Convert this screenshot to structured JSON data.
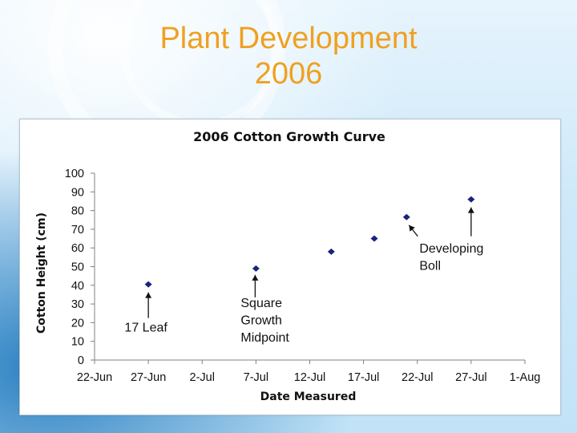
{
  "slide": {
    "title_line1": "Plant Development",
    "title_line2": "2006"
  },
  "colors": {
    "title": "#f0a020",
    "marker": "#1a237e",
    "axis": "#808080"
  },
  "chart_data": {
    "type": "scatter",
    "title": "2006 Cotton Growth Curve",
    "xlabel": "Date Measured",
    "ylabel": "Cotton Height (cm)",
    "xlim": [
      "2006-06-22",
      "2006-08-01"
    ],
    "ylim": [
      0,
      100
    ],
    "yticks": [
      0,
      10,
      20,
      30,
      40,
      50,
      60,
      70,
      80,
      90,
      100
    ],
    "xticks": [
      "22-Jun",
      "27-Jun",
      "2-Jul",
      "7-Jul",
      "12-Jul",
      "17-Jul",
      "22-Jul",
      "27-Jul",
      "1-Aug"
    ],
    "grid": false,
    "legend": "none",
    "series": [
      {
        "name": "Cotton Height",
        "points": [
          {
            "x": "2006-06-27",
            "y": 40.5
          },
          {
            "x": "2006-07-07",
            "y": 49
          },
          {
            "x": "2006-07-14",
            "y": 58
          },
          {
            "x": "2006-07-18",
            "y": 65
          },
          {
            "x": "2006-07-21",
            "y": 76.5
          },
          {
            "x": "2006-07-27",
            "y": 86
          }
        ]
      }
    ],
    "annotations": [
      {
        "lines": [
          "17 Leaf"
        ],
        "target": {
          "x": "2006-06-27",
          "y": 40.5
        }
      },
      {
        "lines": [
          "Square",
          "Growth",
          "Midpoint"
        ],
        "target": {
          "x": "2006-07-07",
          "y": 49
        }
      },
      {
        "lines": [
          "Developing",
          "Boll"
        ],
        "target": {
          "x": "2006-07-21",
          "y": 76.5
        }
      },
      {
        "lines": [],
        "target": {
          "x": "2006-07-27",
          "y": 86
        }
      }
    ]
  }
}
